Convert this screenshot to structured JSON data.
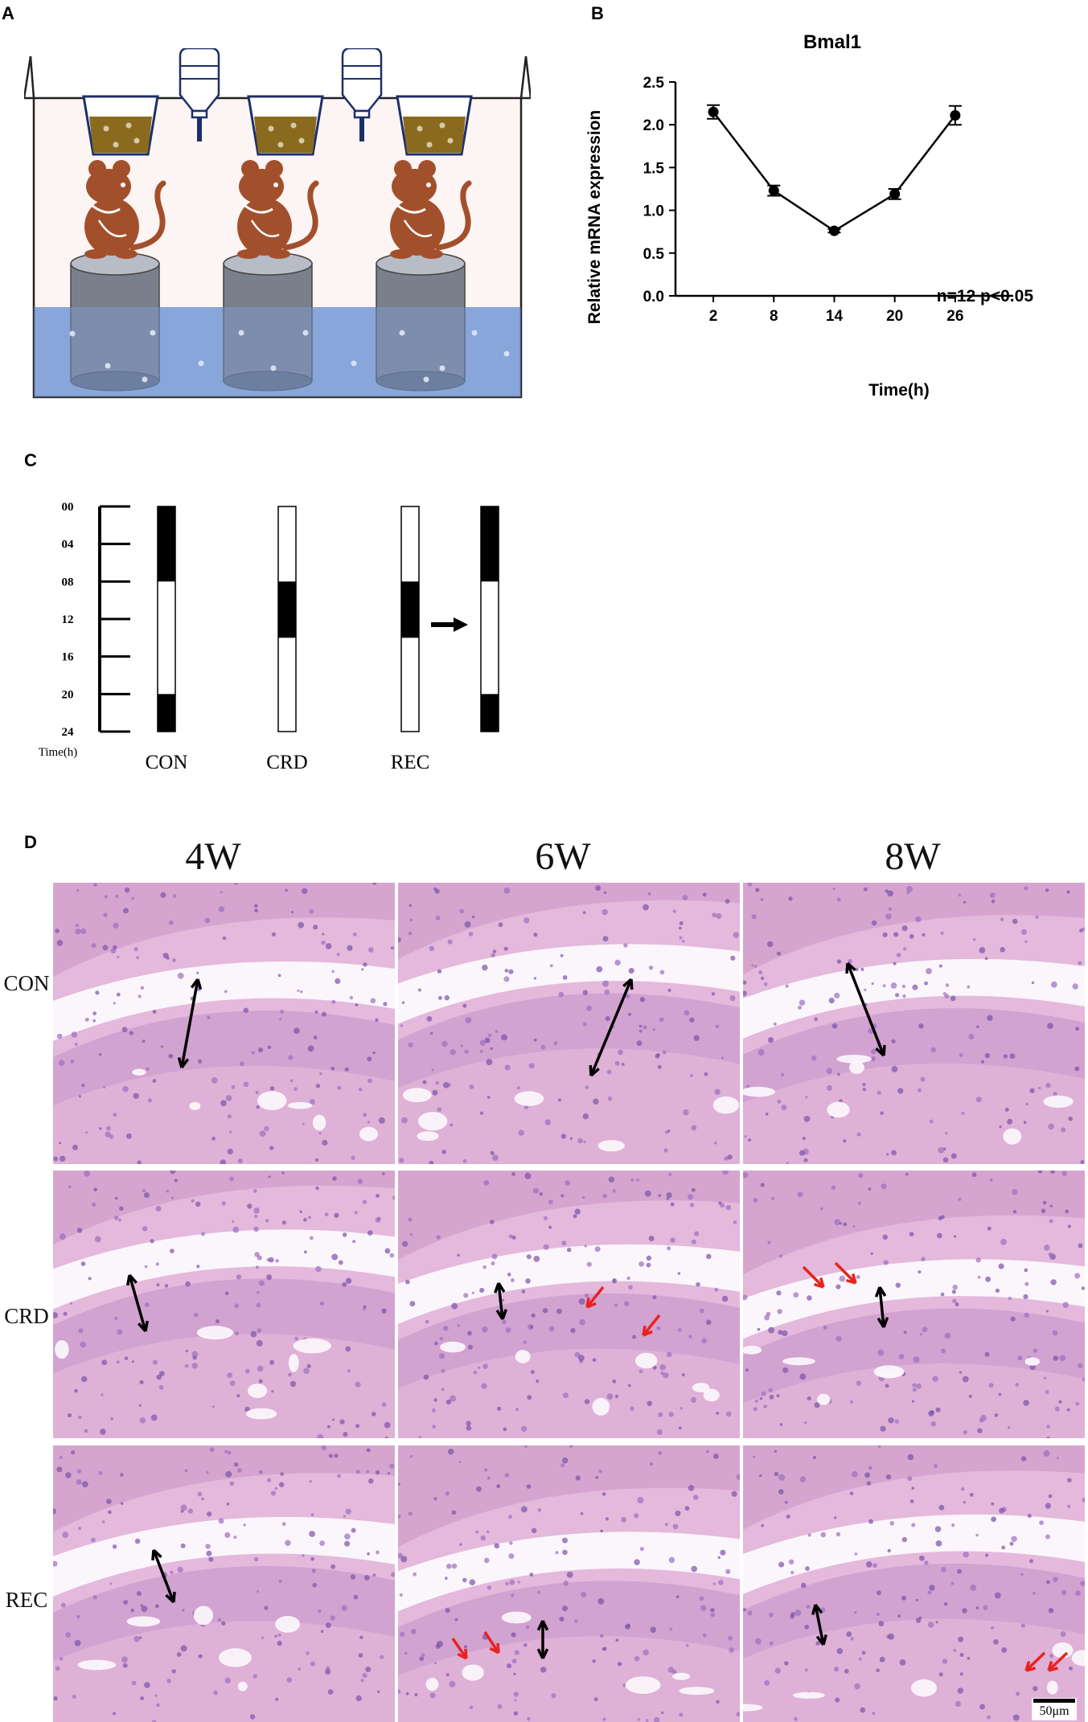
{
  "panels": {
    "a": "A",
    "b": "B",
    "c": "C",
    "d": "D"
  },
  "chart_data": {
    "type": "line",
    "title": "Bmal1",
    "xlabel": "Time(h)",
    "ylabel": "Relative mRNA expression",
    "x": [
      2,
      8,
      14,
      20,
      26
    ],
    "y": [
      2.15,
      1.23,
      0.76,
      1.19,
      2.11
    ],
    "error": [
      0.08,
      0.06,
      0.02,
      0.06,
      0.11
    ],
    "xticks": [
      "2",
      "8",
      "14",
      "20",
      "26"
    ],
    "yticks": [
      "0.0",
      "0.5",
      "1.0",
      "1.5",
      "2.0",
      "2.5"
    ],
    "ylim": [
      0,
      2.5
    ],
    "annotation": "n=12 p<0.05"
  },
  "schedule": {
    "time_labels": [
      "00",
      "04",
      "08",
      "12",
      "16",
      "20",
      "24"
    ],
    "axis_label": "Time(h)",
    "groups": [
      {
        "name": "CON",
        "dark_hours": [
          [
            0,
            8
          ],
          [
            20,
            24
          ]
        ]
      },
      {
        "name": "CRD",
        "dark_hours": [
          [
            8,
            14
          ]
        ]
      },
      {
        "name": "REC",
        "dark_hours": [
          [
            8,
            14
          ]
        ]
      }
    ],
    "rec_after_dark_hours": [
      [
        0,
        8
      ],
      [
        20,
        24
      ]
    ]
  },
  "histology": {
    "columns": [
      "4W",
      "6W",
      "8W"
    ],
    "rows": [
      "CON",
      "CRD",
      "REC"
    ],
    "scale_bar": "50μm"
  },
  "colors": {
    "stain_pink": "#d9a3cf",
    "stain_purple": "#8a63b8",
    "arrow_red": "#e8231f",
    "arrow_black": "#000000",
    "water_blue": "#7e9fd8",
    "mouse_brown": "#a2502c"
  }
}
